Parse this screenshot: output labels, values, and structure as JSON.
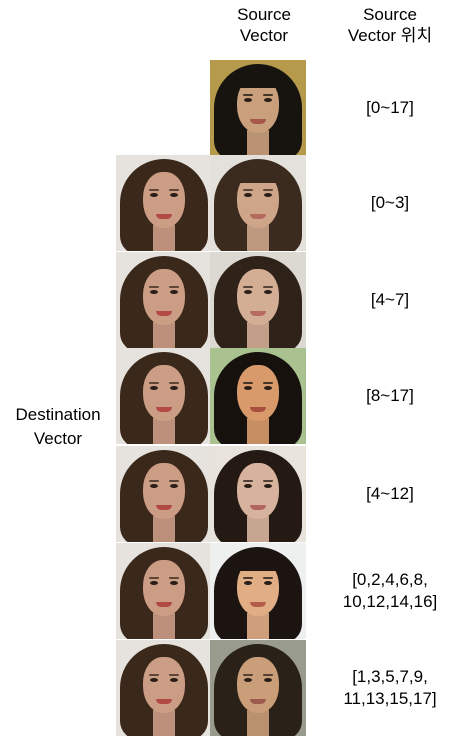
{
  "header": {
    "source_vector": "Source\nVector",
    "source_position": "Source\nVector 위치"
  },
  "destination_label": "Destination\nVector",
  "rows": [
    {
      "position_label": "[0~17]",
      "has_destination": false,
      "source_face": {
        "bg": "#b59a4c",
        "hair": "#17130f",
        "skin": "#caa07c",
        "fringe": true,
        "mouth": "#a8574b"
      }
    },
    {
      "position_label": "[0~3]",
      "has_destination": true,
      "source_face": {
        "bg": "#e4e0db",
        "hair": "#3b2a1e",
        "skin": "#cfa58a",
        "fringe": true,
        "mouth": "#b56a5e"
      }
    },
    {
      "position_label": "[4~7]",
      "has_destination": true,
      "source_face": {
        "bg": "#dcd8d2",
        "hair": "#2f2219",
        "skin": "#d4ad95",
        "fringe": false,
        "mouth": "#b66a60"
      }
    },
    {
      "position_label": "[8~17]",
      "has_destination": true,
      "source_face": {
        "bg": "#a9c28f",
        "hair": "#16110d",
        "skin": "#d89a6a",
        "fringe": false,
        "mouth": "#a94d3f"
      }
    },
    {
      "position_label": "[4~12]",
      "has_destination": true,
      "source_face": {
        "bg": "#e8e4dc",
        "hair": "#241a13",
        "skin": "#d7b39e",
        "fringe": false,
        "mouth": "#b0665d"
      }
    },
    {
      "position_label": "[0,2,4,6,8,\n10,12,14,16]",
      "has_destination": true,
      "source_face": {
        "bg": "#eef0f0",
        "hair": "#1b1410",
        "skin": "#e0ad85",
        "fringe": true,
        "mouth": "#b45b4b"
      }
    },
    {
      "position_label": "[1,3,5,7,9,\n11,13,15,17]",
      "has_destination": true,
      "source_face": {
        "bg": "#9a9b8f",
        "hair": "#2a2118",
        "skin": "#c99e78",
        "fringe": false,
        "mouth": "#9e5a4c"
      }
    }
  ],
  "destination_face": {
    "bg": "#e6e2dd",
    "hair": "#3a281b",
    "skin": "#cc9d85",
    "fringe": false,
    "mouth": "#b24a44"
  }
}
